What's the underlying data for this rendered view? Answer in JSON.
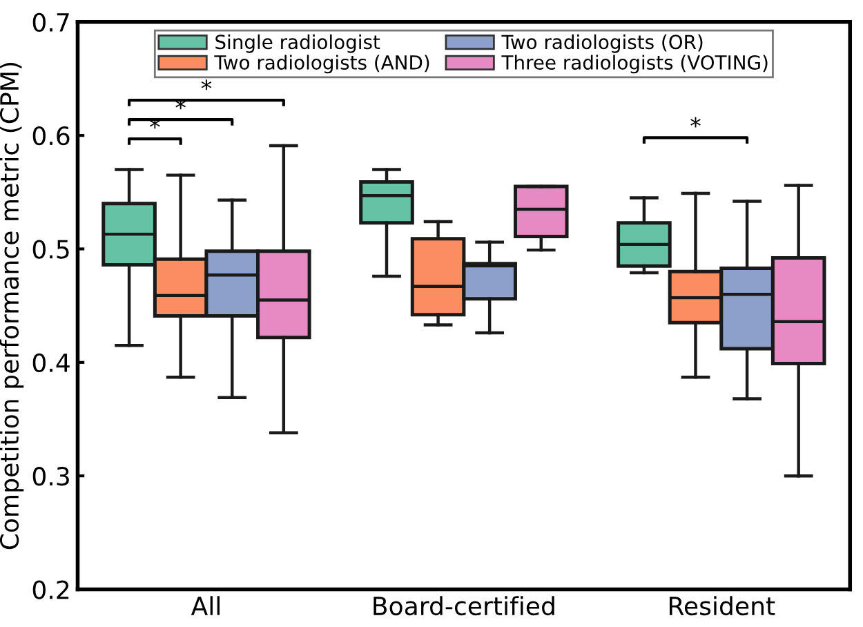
{
  "chart_data": {
    "type": "box",
    "ylabel": "Competition performance metric (CPM)",
    "categories": [
      "All",
      "Board-certified",
      "Resident"
    ],
    "ylim": [
      0.2,
      0.7
    ],
    "yticks": [
      0.2,
      0.3,
      0.4,
      0.5,
      0.6,
      0.7
    ],
    "grid": false,
    "legend": "top",
    "series": [
      {
        "name": "Single radiologist",
        "color": "#66c2a5",
        "boxes": [
          {
            "low": 0.415,
            "q1": 0.486,
            "median": 0.513,
            "q3": 0.54,
            "high": 0.57
          },
          {
            "low": 0.476,
            "q1": 0.523,
            "median": 0.547,
            "q3": 0.559,
            "high": 0.57
          },
          {
            "low": 0.479,
            "q1": 0.485,
            "median": 0.504,
            "q3": 0.523,
            "high": 0.545
          }
        ]
      },
      {
        "name": "Two radiologists (AND)",
        "color": "#fc8d62",
        "boxes": [
          {
            "low": 0.387,
            "q1": 0.441,
            "median": 0.459,
            "q3": 0.491,
            "high": 0.565
          },
          {
            "low": 0.433,
            "q1": 0.442,
            "median": 0.467,
            "q3": 0.509,
            "high": 0.524
          },
          {
            "low": 0.387,
            "q1": 0.435,
            "median": 0.457,
            "q3": 0.48,
            "high": 0.549
          }
        ]
      },
      {
        "name": "Two radiologists (OR)",
        "color": "#8da0cb",
        "boxes": [
          {
            "low": 0.369,
            "q1": 0.441,
            "median": 0.477,
            "q3": 0.498,
            "high": 0.543
          },
          {
            "low": 0.426,
            "q1": 0.456,
            "median": 0.485,
            "q3": 0.487,
            "high": 0.506
          },
          {
            "low": 0.368,
            "q1": 0.412,
            "median": 0.46,
            "q3": 0.483,
            "high": 0.542
          }
        ]
      },
      {
        "name": "Three radiologists (VOTING)",
        "color": "#e78ac3",
        "boxes": [
          {
            "low": 0.338,
            "q1": 0.422,
            "median": 0.455,
            "q3": 0.498,
            "high": 0.591
          },
          {
            "low": 0.499,
            "q1": 0.511,
            "median": 0.535,
            "q3": 0.555,
            "high": 0.555
          },
          {
            "low": 0.3,
            "q1": 0.399,
            "median": 0.436,
            "q3": 0.492,
            "high": 0.556
          }
        ]
      }
    ],
    "annotations": [
      "*",
      "*",
      "*",
      "*"
    ]
  }
}
